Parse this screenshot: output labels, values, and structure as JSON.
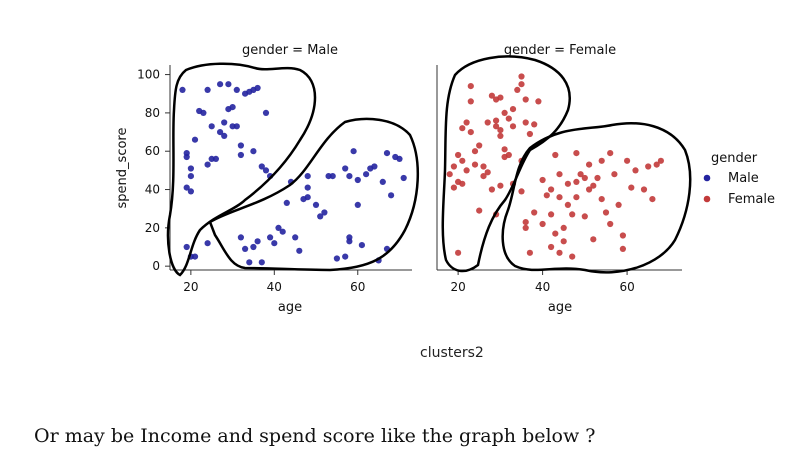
{
  "caption": "clusters2",
  "question": "Or may be Income and spend score like the graph below ?",
  "chart_data": {
    "type": "scatter",
    "ylabel": "spend_score",
    "ylim": [
      -2,
      105
    ],
    "yticks": [
      0,
      20,
      40,
      60,
      80,
      100
    ],
    "xlim": [
      15,
      73
    ],
    "xticks": [
      20,
      40,
      60
    ],
    "legend": {
      "title": "gender",
      "placement": "right",
      "entries": [
        "Male",
        "Female"
      ]
    },
    "panels": [
      {
        "title": "gender = Male",
        "xlabel": "age",
        "color": "#2424a0",
        "points": [
          [
            18,
            92
          ],
          [
            19,
            59
          ],
          [
            19,
            57
          ],
          [
            20,
            51
          ],
          [
            20,
            47
          ],
          [
            21,
            66
          ],
          [
            19,
            41
          ],
          [
            20,
            39
          ],
          [
            22,
            81
          ],
          [
            23,
            80
          ],
          [
            24,
            92
          ],
          [
            25,
            73
          ],
          [
            24,
            53
          ],
          [
            25,
            56
          ],
          [
            26,
            56
          ],
          [
            27,
            70
          ],
          [
            27,
            95
          ],
          [
            28,
            68
          ],
          [
            28,
            75
          ],
          [
            29,
            95
          ],
          [
            29,
            82
          ],
          [
            30,
            83
          ],
          [
            30,
            73
          ],
          [
            31,
            73
          ],
          [
            31,
            92
          ],
          [
            32,
            63
          ],
          [
            32,
            58
          ],
          [
            33,
            90
          ],
          [
            34,
            91
          ],
          [
            35,
            60
          ],
          [
            35,
            92
          ],
          [
            36,
            93
          ],
          [
            37,
            52
          ],
          [
            38,
            80
          ],
          [
            38,
            50
          ],
          [
            39,
            47
          ],
          [
            24,
            12
          ],
          [
            19,
            10
          ],
          [
            20,
            5
          ],
          [
            21,
            5
          ],
          [
            32,
            15
          ],
          [
            33,
            9
          ],
          [
            34,
            2
          ],
          [
            35,
            10
          ],
          [
            36,
            13
          ],
          [
            37,
            2
          ],
          [
            39,
            15
          ],
          [
            40,
            12
          ],
          [
            41,
            20
          ],
          [
            42,
            18
          ],
          [
            43,
            33
          ],
          [
            44,
            44
          ],
          [
            45,
            15
          ],
          [
            46,
            8
          ],
          [
            47,
            35
          ],
          [
            48,
            47
          ],
          [
            48,
            41
          ],
          [
            48,
            36
          ],
          [
            50,
            32
          ],
          [
            51,
            26
          ],
          [
            52,
            28
          ],
          [
            53,
            47
          ],
          [
            54,
            47
          ],
          [
            55,
            4
          ],
          [
            57,
            51
          ],
          [
            58,
            15
          ],
          [
            58,
            13
          ],
          [
            59,
            60
          ],
          [
            58,
            47
          ],
          [
            60,
            45
          ],
          [
            60,
            32
          ],
          [
            61,
            11
          ],
          [
            62,
            48
          ],
          [
            63,
            51
          ],
          [
            64,
            52
          ],
          [
            65,
            3
          ],
          [
            66,
            44
          ],
          [
            67,
            9
          ],
          [
            68,
            37
          ],
          [
            69,
            57
          ],
          [
            70,
            56
          ],
          [
            71,
            46
          ],
          [
            67,
            59
          ],
          [
            57,
            5
          ]
        ]
      },
      {
        "title": "gender = Female",
        "xlabel": "age",
        "color": "#c23a3a",
        "points": [
          [
            18,
            48
          ],
          [
            19,
            41
          ],
          [
            19,
            52
          ],
          [
            20,
            44
          ],
          [
            20,
            58
          ],
          [
            21,
            55
          ],
          [
            21,
            43
          ],
          [
            21,
            72
          ],
          [
            22,
            75
          ],
          [
            22,
            50
          ],
          [
            23,
            86
          ],
          [
            23,
            94
          ],
          [
            23,
            70
          ],
          [
            24,
            60
          ],
          [
            24,
            53
          ],
          [
            25,
            63
          ],
          [
            26,
            52
          ],
          [
            26,
            47
          ],
          [
            27,
            75
          ],
          [
            28,
            89
          ],
          [
            28,
            40
          ],
          [
            29,
            87
          ],
          [
            29,
            76
          ],
          [
            29,
            73
          ],
          [
            30,
            88
          ],
          [
            30,
            71
          ],
          [
            30,
            68
          ],
          [
            31,
            80
          ],
          [
            31,
            61
          ],
          [
            32,
            77
          ],
          [
            32,
            58
          ],
          [
            33,
            82
          ],
          [
            33,
            73
          ],
          [
            34,
            92
          ],
          [
            35,
            99
          ],
          [
            35,
            95
          ],
          [
            36,
            87
          ],
          [
            36,
            75
          ],
          [
            37,
            69
          ],
          [
            38,
            74
          ],
          [
            39,
            86
          ],
          [
            35,
            55
          ],
          [
            35,
            39
          ],
          [
            33,
            43
          ],
          [
            30,
            42
          ],
          [
            29,
            27
          ],
          [
            25,
            29
          ],
          [
            20,
            7
          ],
          [
            27,
            49
          ],
          [
            31,
            57
          ],
          [
            36,
            20
          ],
          [
            36,
            23
          ],
          [
            37,
            7
          ],
          [
            38,
            28
          ],
          [
            40,
            22
          ],
          [
            40,
            45
          ],
          [
            41,
            37
          ],
          [
            42,
            27
          ],
          [
            42,
            40
          ],
          [
            43,
            17
          ],
          [
            43,
            58
          ],
          [
            44,
            36
          ],
          [
            44,
            48
          ],
          [
            45,
            20
          ],
          [
            45,
            13
          ],
          [
            46,
            32
          ],
          [
            46,
            43
          ],
          [
            47,
            27
          ],
          [
            48,
            59
          ],
          [
            48,
            44
          ],
          [
            48,
            36
          ],
          [
            49,
            48
          ],
          [
            50,
            46
          ],
          [
            50,
            26
          ],
          [
            51,
            53
          ],
          [
            51,
            40
          ],
          [
            52,
            14
          ],
          [
            52,
            42
          ],
          [
            53,
            46
          ],
          [
            54,
            55
          ],
          [
            54,
            35
          ],
          [
            55,
            28
          ],
          [
            56,
            59
          ],
          [
            56,
            22
          ],
          [
            57,
            48
          ],
          [
            58,
            32
          ],
          [
            59,
            16
          ],
          [
            59,
            9
          ],
          [
            60,
            55
          ],
          [
            61,
            41
          ],
          [
            62,
            50
          ],
          [
            64,
            40
          ],
          [
            65,
            52
          ],
          [
            66,
            35
          ],
          [
            67,
            53
          ],
          [
            68,
            55
          ],
          [
            44,
            7
          ],
          [
            42,
            10
          ],
          [
            47,
            5
          ]
        ]
      }
    ],
    "annotation": "hand-drawn cluster outlines around point groups"
  }
}
